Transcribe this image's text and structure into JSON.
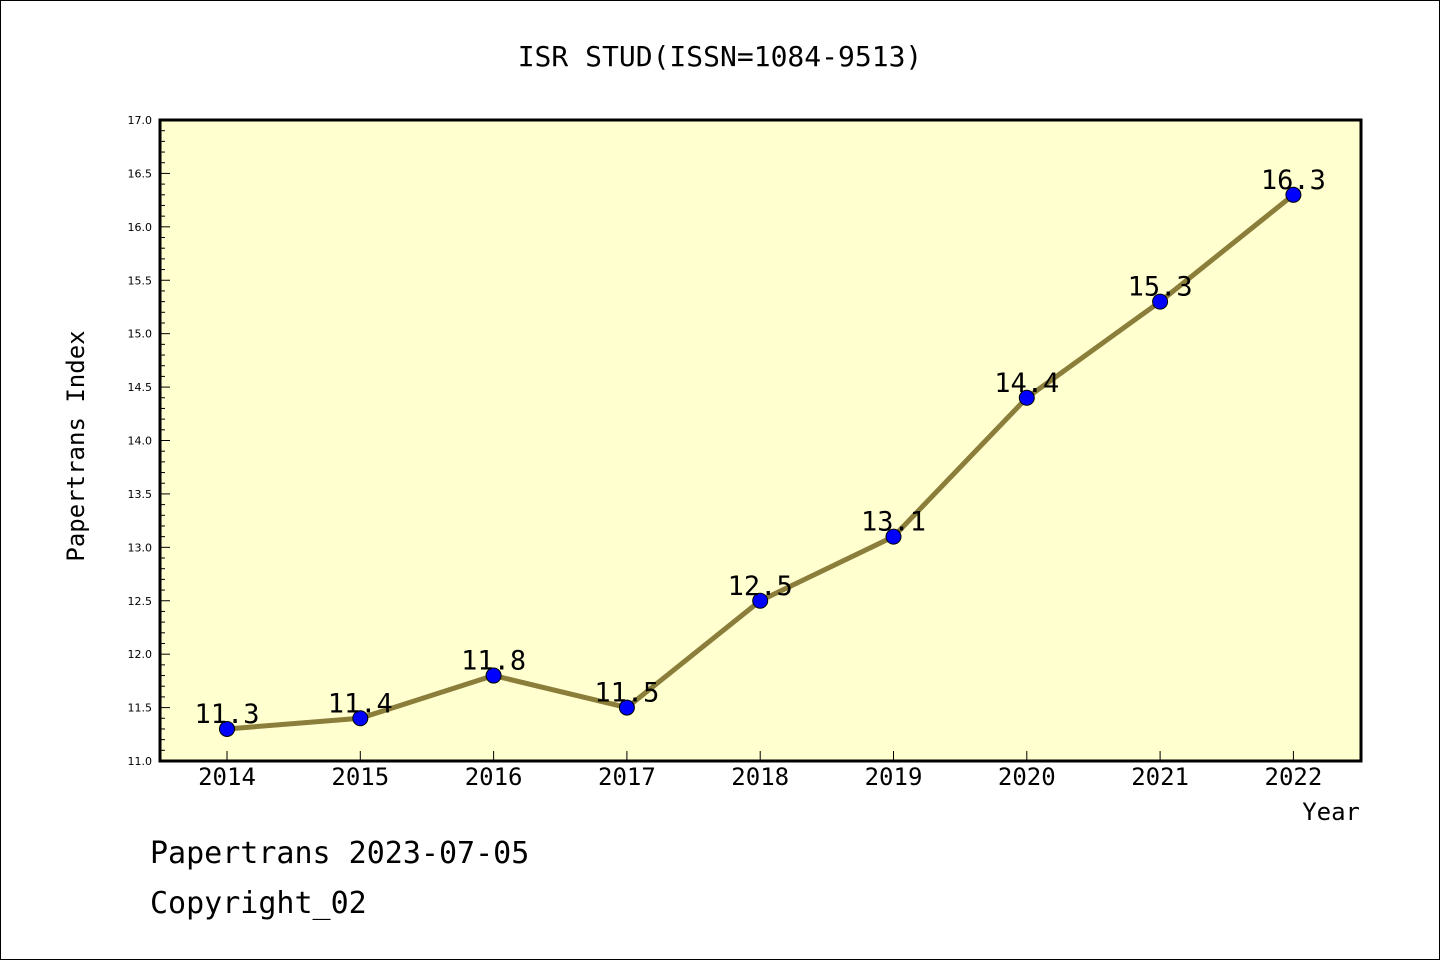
{
  "chart_data": {
    "type": "line",
    "title": "ISR STUD(ISSN=1084-9513)",
    "xlabel": "Year",
    "ylabel": "Papertrans Index",
    "categories": [
      "2014",
      "2015",
      "2016",
      "2017",
      "2018",
      "2019",
      "2020",
      "2021",
      "2022"
    ],
    "series": [
      {
        "values": [
          11.3,
          11.4,
          11.8,
          11.5,
          12.5,
          13.1,
          14.4,
          15.3,
          16.3
        ],
        "data_labels": [
          "11.3",
          "11.4",
          "11.8",
          "11.5",
          "12.5",
          "13.1",
          "14.4",
          "15.3",
          "16.3"
        ],
        "line_color": "#8b7d3a",
        "marker_color": "#0000ff"
      }
    ],
    "ylim": [
      11.0,
      17.0
    ],
    "yticks": [
      "11.0",
      "11.5",
      "12.0",
      "12.5",
      "13.0",
      "13.5",
      "14.0",
      "14.5",
      "15.0",
      "15.5",
      "16.0",
      "16.5",
      "17.0"
    ],
    "plot_background": "#ffffd0",
    "grid": false,
    "legend": "none"
  },
  "footer": {
    "line1": "Papertrans 2023-07-05",
    "line2": "Copyright_02"
  }
}
